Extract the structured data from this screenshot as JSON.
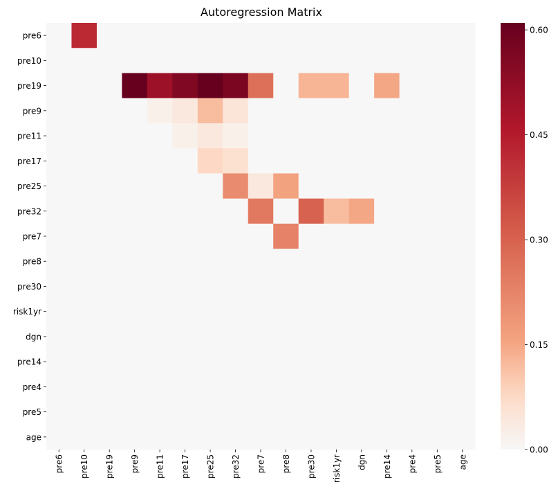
{
  "chart_data": {
    "type": "heatmap",
    "title": "Autoregression Matrix",
    "xlabel": "",
    "ylabel": "",
    "rows": [
      "pre6",
      "pre10",
      "pre19",
      "pre9",
      "pre11",
      "pre17",
      "pre25",
      "pre32",
      "pre7",
      "pre8",
      "pre30",
      "risk1yr",
      "dgn",
      "pre14",
      "pre4",
      "pre5",
      "age"
    ],
    "columns": [
      "pre6",
      "pre10",
      "pre19",
      "pre9",
      "pre11",
      "pre17",
      "pre25",
      "pre32",
      "pre7",
      "pre8",
      "pre30",
      "risk1yr",
      "dgn",
      "pre14",
      "pre4",
      "pre5",
      "age"
    ],
    "values": [
      [
        0,
        0.42,
        0,
        0,
        0,
        0,
        0,
        0,
        0,
        0,
        0,
        0,
        0,
        0,
        0,
        0,
        0
      ],
      [
        0,
        0,
        0,
        0,
        0,
        0,
        0,
        0,
        0,
        0,
        0,
        0,
        0,
        0,
        0,
        0,
        0
      ],
      [
        0,
        0,
        0,
        0.61,
        0.5,
        0.56,
        0.61,
        0.57,
        0.27,
        0,
        0.13,
        0.13,
        0,
        0.15,
        0,
        0,
        0
      ],
      [
        0,
        0,
        0,
        0,
        0.02,
        0.04,
        0.12,
        0.05,
        0,
        0,
        0,
        0,
        0,
        0,
        0,
        0,
        0
      ],
      [
        0,
        0,
        0,
        0,
        0,
        0.02,
        0.04,
        0.02,
        0,
        0,
        0,
        0,
        0,
        0,
        0,
        0,
        0
      ],
      [
        0,
        0,
        0,
        0,
        0,
        0,
        0.08,
        0.06,
        0,
        0,
        0,
        0,
        0,
        0,
        0,
        0,
        0
      ],
      [
        0,
        0,
        0,
        0,
        0,
        0,
        0,
        0.21,
        0.04,
        0.16,
        0,
        0,
        0,
        0,
        0,
        0,
        0
      ],
      [
        0,
        0,
        0,
        0,
        0,
        0,
        0,
        0,
        0.25,
        0,
        0.3,
        0.12,
        0.15,
        0,
        0,
        0,
        0
      ],
      [
        0,
        0,
        0,
        0,
        0,
        0,
        0,
        0,
        0,
        0.23,
        0,
        0,
        0,
        0,
        0,
        0,
        0
      ],
      [
        0,
        0,
        0,
        0,
        0,
        0,
        0,
        0,
        0,
        0,
        0,
        0,
        0,
        0,
        0,
        0,
        0
      ],
      [
        0,
        0,
        0,
        0,
        0,
        0,
        0,
        0,
        0,
        0,
        0,
        0,
        0,
        0,
        0,
        0,
        0
      ],
      [
        0,
        0,
        0,
        0,
        0,
        0,
        0,
        0,
        0,
        0,
        0,
        0,
        0,
        0,
        0,
        0,
        0
      ],
      [
        0,
        0,
        0,
        0,
        0,
        0,
        0,
        0,
        0,
        0,
        0,
        0,
        0,
        0,
        0,
        0,
        0
      ],
      [
        0,
        0,
        0,
        0,
        0,
        0,
        0,
        0,
        0,
        0,
        0,
        0,
        0,
        0,
        0,
        0,
        0
      ],
      [
        0,
        0,
        0,
        0,
        0,
        0,
        0,
        0,
        0,
        0,
        0,
        0,
        0,
        0,
        0,
        0,
        0
      ],
      [
        0,
        0,
        0,
        0,
        0,
        0,
        0,
        0,
        0,
        0,
        0,
        0,
        0,
        0,
        0,
        0,
        0
      ],
      [
        0,
        0,
        0,
        0,
        0,
        0,
        0,
        0,
        0,
        0,
        0,
        0,
        0,
        0,
        0,
        0,
        0
      ]
    ],
    "colormap": "RdBu_r (upper half: #f7f7f7 to #67001f)",
    "colorbar": {
      "range": [
        0,
        0.61
      ],
      "ticks": [
        0.0,
        0.15,
        0.3,
        0.45,
        0.6
      ],
      "tick_labels": [
        "0.00",
        "0.15",
        "0.30",
        "0.45",
        "0.60"
      ],
      "placement": "right"
    },
    "grid": false
  }
}
